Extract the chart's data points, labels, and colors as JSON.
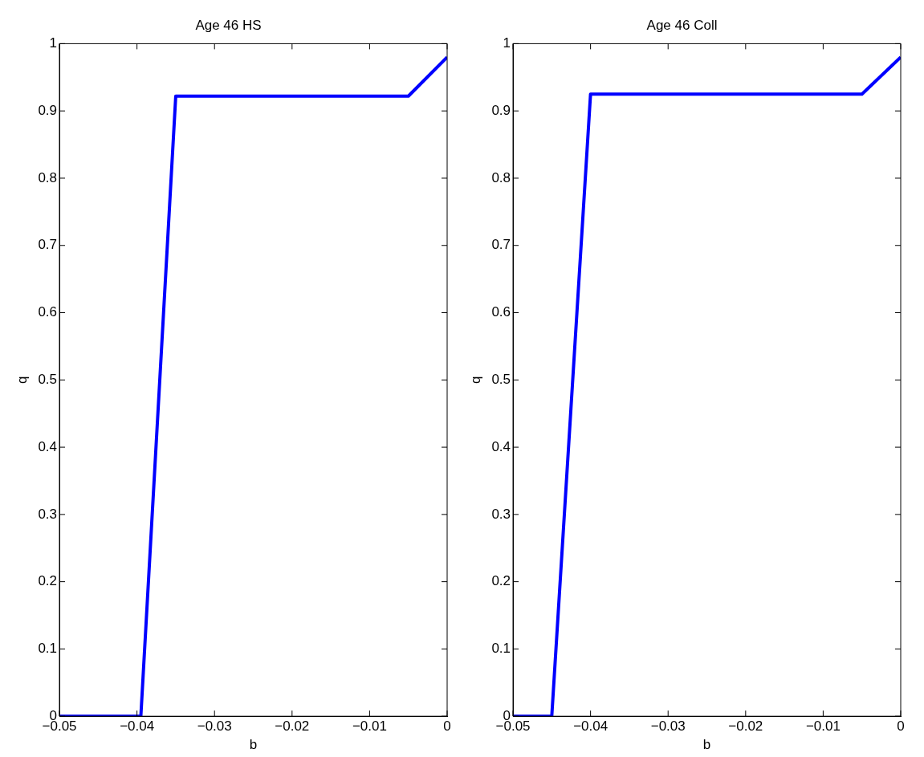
{
  "chart_data": [
    {
      "type": "line",
      "title": "Age 46 HS",
      "xlabel": "b",
      "ylabel": "q",
      "xlim": [
        -0.05,
        0
      ],
      "xticks": [
        {
          "value": -0.05,
          "label": "−0.05"
        },
        {
          "value": -0.04,
          "label": "−0.04"
        },
        {
          "value": -0.03,
          "label": "−0.03"
        },
        {
          "value": -0.02,
          "label": "−0.02"
        },
        {
          "value": -0.01,
          "label": "−0.01"
        },
        0
      ],
      "ylim": [
        0,
        1
      ],
      "yticks": [
        0,
        0.1,
        0.2,
        0.3,
        0.4,
        0.5,
        0.6,
        0.7,
        0.8,
        0.9,
        1
      ],
      "grid": false,
      "legend": false,
      "marker": "none",
      "line_style": "solid",
      "series": [
        {
          "color": "#0000ff",
          "x": [
            -0.05,
            -0.0395,
            -0.035,
            -0.005,
            0
          ],
          "values": [
            0,
            0,
            0.922,
            0.922,
            0.98
          ]
        }
      ]
    },
    {
      "type": "line",
      "title": "Age 46 Coll",
      "xlabel": "b",
      "ylabel": "q",
      "xlim": [
        -0.05,
        0
      ],
      "xticks": [
        {
          "value": -0.05,
          "label": "−0.05"
        },
        {
          "value": -0.04,
          "label": "−0.04"
        },
        {
          "value": -0.03,
          "label": "−0.03"
        },
        {
          "value": -0.02,
          "label": "−0.02"
        },
        {
          "value": -0.01,
          "label": "−0.01"
        },
        0
      ],
      "ylim": [
        0,
        1
      ],
      "yticks": [
        0,
        0.1,
        0.2,
        0.3,
        0.4,
        0.5,
        0.6,
        0.7,
        0.8,
        0.9,
        1
      ],
      "grid": false,
      "legend": false,
      "marker": "none",
      "line_style": "solid",
      "series": [
        {
          "color": "#0000ff",
          "x": [
            -0.05,
            -0.045,
            -0.04,
            -0.005,
            0
          ],
          "values": [
            0,
            0,
            0.925,
            0.925,
            0.98
          ]
        }
      ]
    }
  ]
}
